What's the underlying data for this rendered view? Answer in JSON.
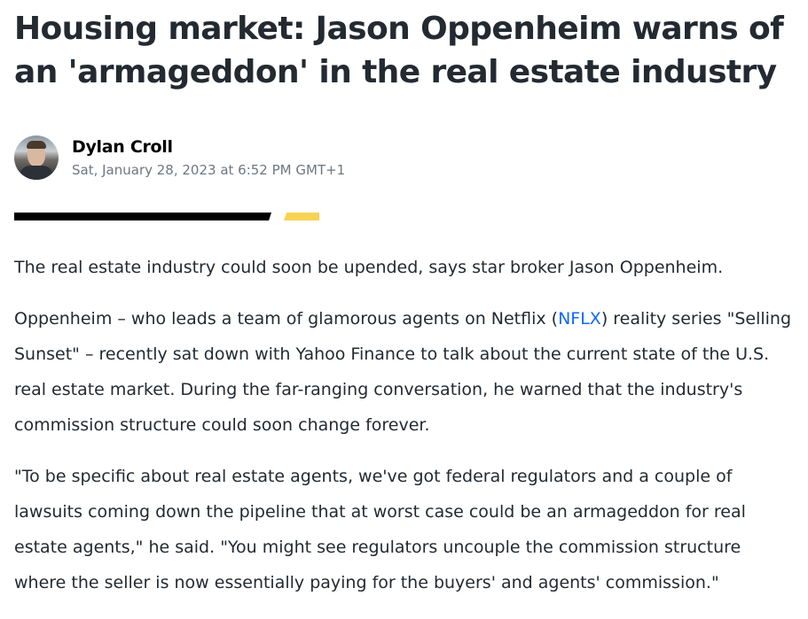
{
  "article": {
    "title": "Housing market: Jason Oppenheim warns of an 'armageddon' in the real estate industry",
    "author": {
      "name": "Dylan Croll",
      "date": "Sat, January 28, 2023 at 6:52 PM GMT+1"
    },
    "accent_colors": {
      "black": "#000000",
      "yellow": "#f7d354",
      "link": "#0f69ff"
    },
    "paragraphs": {
      "p1": "The real estate industry could soon be upended, says star broker Jason Oppenheim.",
      "p2_before": "Oppenheim – who leads a team of glamorous agents on Netflix (",
      "p2_link": "NFLX",
      "p2_after": ") reality series \"Selling Sunset\" – recently sat down with Yahoo Finance to talk about the current state of the U.S. real estate market. During the far-ranging conversation, he warned that the industry's commission structure could soon change forever.",
      "p3": "\"To be specific about real estate agents, we've got federal regulators and a couple of lawsuits coming down the pipeline that at worst case could be an armageddon for real estate agents,\" he said. \"You might see regulators uncouple the commission structure where the seller is now essentially paying for the buyers' and agents' commission.\""
    }
  }
}
